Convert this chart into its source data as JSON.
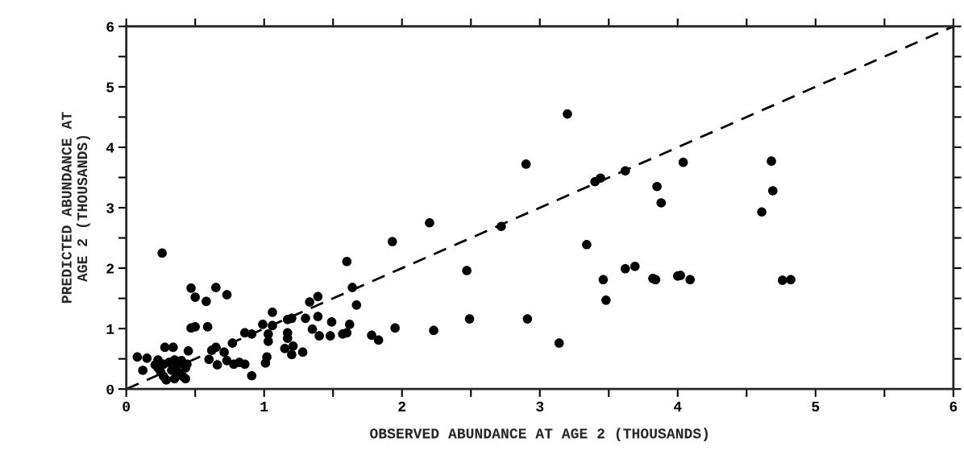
{
  "chart_data": {
    "type": "scatter",
    "xlabel": "OBSERVED ABUNDANCE AT AGE 2 (THOUSANDS)",
    "ylabel": "PREDICTED ABUNDANCE AT\nAGE 2 (THOUSANDS)",
    "xlim": [
      0,
      6
    ],
    "ylim": [
      0,
      6
    ],
    "xticks": [
      0,
      {
        "value": 0.5,
        "label": null
      },
      1,
      {
        "value": 1.5,
        "label": null
      },
      2,
      {
        "value": 2.5,
        "label": null
      },
      3,
      {
        "value": 3.5,
        "label": null
      },
      4,
      {
        "value": 4.5,
        "label": null
      },
      5,
      {
        "value": 5.5,
        "label": null
      },
      6
    ],
    "yticks": [
      0,
      {
        "value": 0.5,
        "label": null
      },
      1,
      {
        "value": 1.5,
        "label": null
      },
      2,
      {
        "value": 2.5,
        "label": null
      },
      3,
      {
        "value": 3.5,
        "label": null
      },
      4,
      {
        "value": 4.5,
        "label": null
      },
      5,
      {
        "value": 5.5,
        "label": null
      },
      6
    ],
    "grid": false,
    "legend": false,
    "series": [
      {
        "color": "#000000",
        "marker": "circle",
        "x": [
          3.62,
          4.04,
          3.85,
          3.88,
          4.68,
          4.69,
          4.61,
          3.46,
          3.48,
          3.62,
          3.69,
          3.82,
          3.84,
          4.0,
          4.02,
          4.09,
          4.76,
          4.82,
          3.2,
          2.9,
          3.4,
          3.44,
          2.2,
          1.93,
          2.72,
          2.47,
          3.34,
          1.78,
          1.83,
          1.95,
          2.23,
          2.49,
          2.91,
          3.14,
          1.6,
          1.64,
          1.67,
          1.49,
          1.62,
          1.57,
          1.6,
          1.48,
          1.39,
          1.33,
          1.39,
          1.3,
          1.2,
          1.17,
          1.35,
          1.4,
          1.06,
          0.99,
          1.06,
          1.03,
          1.03,
          1.17,
          1.17,
          1.15,
          1.21,
          1.2,
          1.28,
          1.02,
          1.01,
          0.86,
          0.91,
          0.77,
          0.71,
          0.65,
          0.62,
          0.6,
          0.66,
          0.73,
          0.78,
          0.82,
          0.86,
          0.91,
          0.47,
          0.5,
          0.58,
          0.65,
          0.73,
          0.47,
          0.5,
          0.59,
          0.45,
          0.28,
          0.34,
          0.26,
          0.08,
          0.15,
          0.12,
          0.23,
          0.23,
          0.27,
          0.31,
          0.33,
          0.29,
          0.35,
          0.4,
          0.43,
          0.41,
          0.37,
          0.27,
          0.35,
          0.21,
          0.44,
          0.25,
          0.38,
          0.43
        ],
        "values": [
          3.61,
          3.75,
          3.35,
          3.08,
          3.77,
          3.28,
          2.93,
          1.81,
          1.47,
          1.99,
          2.03,
          1.83,
          1.81,
          1.87,
          1.88,
          1.81,
          1.8,
          1.81,
          4.55,
          3.72,
          3.43,
          3.49,
          2.75,
          2.44,
          2.69,
          1.96,
          2.39,
          0.89,
          0.81,
          1.01,
          0.97,
          1.16,
          1.16,
          0.76,
          2.11,
          1.68,
          1.39,
          1.11,
          1.07,
          0.91,
          0.93,
          0.88,
          1.2,
          1.44,
          1.53,
          1.17,
          1.17,
          1.15,
          0.99,
          0.88,
          1.27,
          1.07,
          1.05,
          0.91,
          0.79,
          0.93,
          0.84,
          0.67,
          0.71,
          0.57,
          0.61,
          0.53,
          0.43,
          0.93,
          0.91,
          0.76,
          0.61,
          0.69,
          0.64,
          0.49,
          0.4,
          0.47,
          0.41,
          0.44,
          0.41,
          0.22,
          1.67,
          1.52,
          1.45,
          1.68,
          1.56,
          1.01,
          1.03,
          1.03,
          0.63,
          0.69,
          0.69,
          2.25,
          0.53,
          0.51,
          0.31,
          0.48,
          0.35,
          0.21,
          0.44,
          0.31,
          0.15,
          0.17,
          0.47,
          0.35,
          0.21,
          0.4,
          0.41,
          0.48,
          0.4,
          0.41,
          0.28,
          0.27,
          0.17
        ]
      },
      {
        "type": "line",
        "color": "#000000",
        "line_style": "dashed",
        "marker": "none",
        "x": [
          0,
          6
        ],
        "values": [
          0,
          6
        ]
      }
    ]
  }
}
